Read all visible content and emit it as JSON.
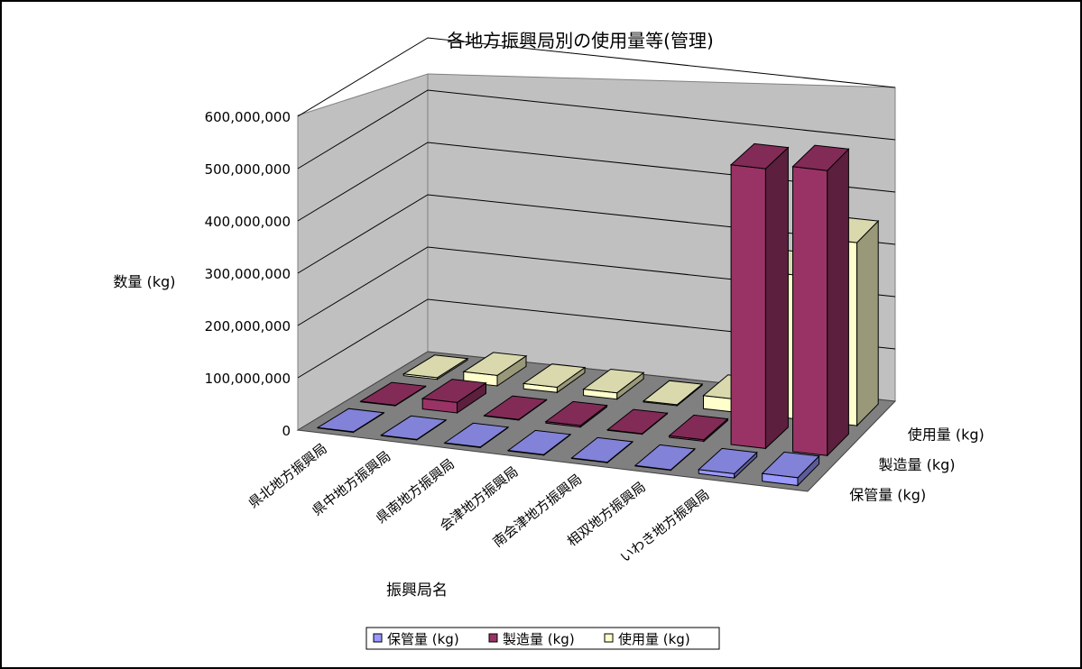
{
  "chart_data": {
    "type": "bar",
    "title": "各地方振興局別の使用量等(管理)",
    "xlabel": "振興局名",
    "ylabel": "数量 (kg)",
    "ylim": [
      0,
      600000000
    ],
    "yticks": [
      "0",
      "100,000,000",
      "200,000,000",
      "300,000,000",
      "400,000,000",
      "500,000,000",
      "600,000,000"
    ],
    "grid": true,
    "legend_position": "bottom",
    "categories": [
      "県北地方振興局",
      "県中地方振興局",
      "県南地方振興局",
      "会津地方振興局",
      "南会津地方振興局",
      "相双地方振興局",
      "いわき地方振興局",
      ""
    ],
    "series": [
      {
        "name": "保管量 (kg)",
        "color": "#9999ff",
        "values": [
          1000000,
          1000000,
          1000000,
          1000000,
          1000000,
          1000000,
          8000000,
          15000000
        ]
      },
      {
        "name": "製造量 (kg)",
        "color": "#993366",
        "values": [
          1000000,
          20000000,
          1000000,
          3000000,
          1000000,
          3000000,
          535000000,
          545000000
        ]
      },
      {
        "name": "使用量 (kg)",
        "color": "#ffffcc",
        "values": [
          3000000,
          20000000,
          10000000,
          12000000,
          2000000,
          25000000,
          275000000,
          350000000
        ]
      }
    ]
  }
}
